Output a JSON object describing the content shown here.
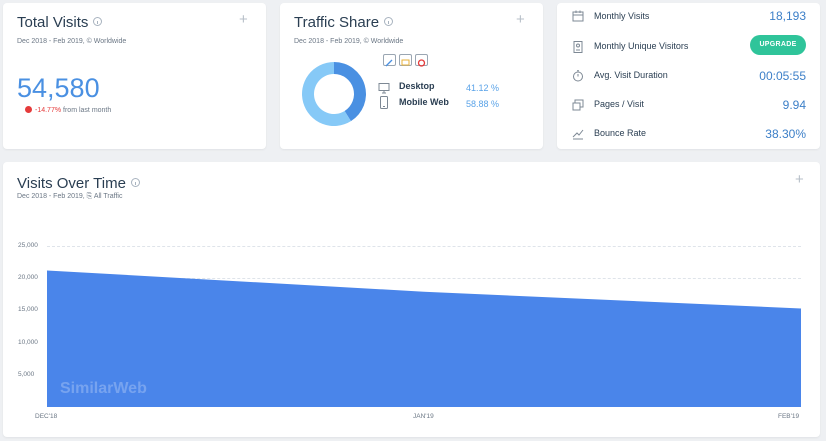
{
  "total_visits": {
    "title": "Total Visits",
    "subtitle": "Dec 2018 - Feb 2019, © Worldwide",
    "value": "54,580",
    "change": "-14.77%",
    "change_suffix": "from last month"
  },
  "traffic_share": {
    "title": "Traffic Share",
    "subtitle": "Dec 2018 - Feb 2019, © Worldwide",
    "segments": [
      {
        "label": "Desktop",
        "percent": "41.12 %",
        "share": 41.12,
        "color": "#4a90e2"
      },
      {
        "label": "Mobile Web",
        "percent": "58.88 %",
        "share": 58.88,
        "color": "#86c9f7"
      }
    ],
    "filter_icons": [
      "pencil-icon",
      "comment-icon",
      "google-icon"
    ]
  },
  "stats": {
    "monthly_visits_label": "Monthly Visits",
    "monthly_visits_value": "18,193",
    "unique_visitors_label": "Monthly Unique Visitors",
    "upgrade_label": "UPGRADE",
    "visit_duration_label": "Avg. Visit Duration",
    "visit_duration_value": "00:05:55",
    "pages_label": "Pages / Visit",
    "pages_value": "9.94",
    "bounce_label": "Bounce Rate",
    "bounce_value": "38.30%"
  },
  "visits_over_time": {
    "title": "Visits Over Time",
    "subtitle": "Dec 2018 - Feb 2019, ⎘ All Traffic",
    "watermark": "SimilarWeb"
  },
  "plus_symbol": "+",
  "chart_data": {
    "type": "area",
    "x": [
      "DEC'18",
      "JAN'19",
      "FEB'19"
    ],
    "values": [
      21200,
      17900,
      15300
    ],
    "ylim": [
      0,
      25000
    ],
    "yticks": [
      "25,000",
      "20,000",
      "15,000",
      "10,000",
      "5,000"
    ],
    "color": "#4a85ea",
    "grid": true
  }
}
